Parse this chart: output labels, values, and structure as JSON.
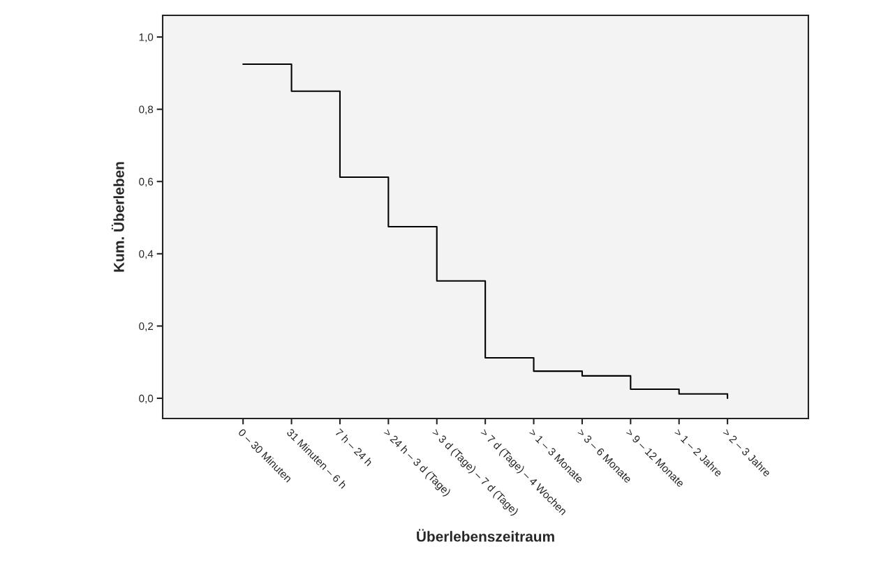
{
  "chart_data": {
    "type": "step",
    "xlabel": "Überlebenszeitraum",
    "ylabel": "Kum. Überleben",
    "categories": [
      "0 – 30 Minuten",
      "31 Minuten – 6 h",
      "7 h – 24 h",
      "> 24 h – 3 d (Tage)",
      "> 3 d (Tage) – 7 d (Tage)",
      "> 7 d (Tage) – 4 Wochen",
      "> 1 – 3 Monate",
      "> 3 – 6 Monate",
      "> 9 – 12 Monate",
      "> 1 – 2 Jahre",
      "> 2 – 3 Jahre"
    ],
    "series": [
      {
        "color": "#000000",
        "values": [
          0.925,
          0.85,
          0.612,
          0.475,
          0.325,
          0.112,
          0.075,
          0.062,
          0.025,
          0.012,
          0.0
        ]
      }
    ],
    "ylim": [
      -0.056,
      1.06
    ],
    "yticks": [
      {
        "value": 0.0,
        "label": "0,0"
      },
      {
        "value": 0.2,
        "label": "0,2"
      },
      {
        "value": 0.4,
        "label": "0,4"
      },
      {
        "value": 0.6,
        "label": "0,6"
      },
      {
        "value": 0.8,
        "label": "0,8"
      },
      {
        "value": 1.0,
        "label": "1,0"
      }
    ],
    "grid": false,
    "legend": false,
    "marker": "none",
    "line_style": "solid"
  }
}
